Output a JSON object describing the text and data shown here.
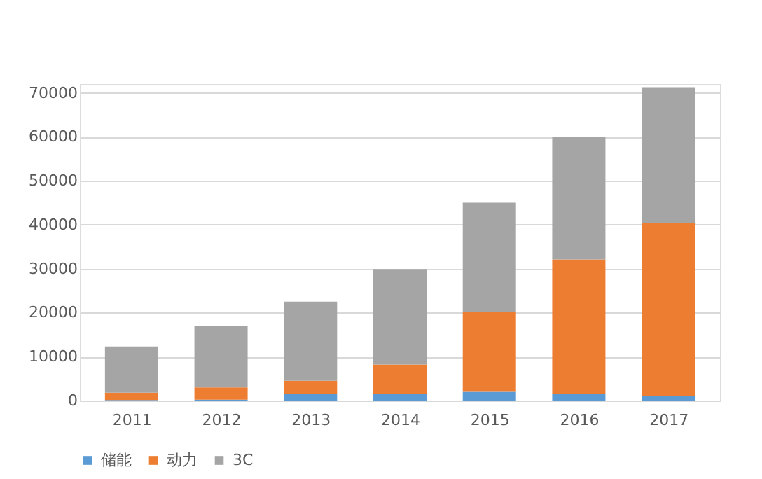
{
  "chart_data": {
    "type": "bar",
    "stacked": true,
    "categories": [
      "2011",
      "2012",
      "2013",
      "2014",
      "2015",
      "2016",
      "2017"
    ],
    "series": [
      {
        "name": "储能",
        "color": "#5b9bd5",
        "values": [
          100,
          200,
          1500,
          1500,
          2000,
          1500,
          1000
        ]
      },
      {
        "name": "动力",
        "color": "#ed7d31",
        "values": [
          1700,
          2800,
          3000,
          6700,
          18100,
          30600,
          39300
        ]
      },
      {
        "name": "3C",
        "color": "#a5a5a5",
        "values": [
          10500,
          14000,
          18000,
          21700,
          24900,
          27800,
          31000
        ]
      }
    ],
    "ylim": [
      0,
      72000
    ],
    "yticks": [
      0,
      10000,
      20000,
      30000,
      40000,
      50000,
      60000,
      70000
    ],
    "grid": "y",
    "legend": "bottom"
  }
}
